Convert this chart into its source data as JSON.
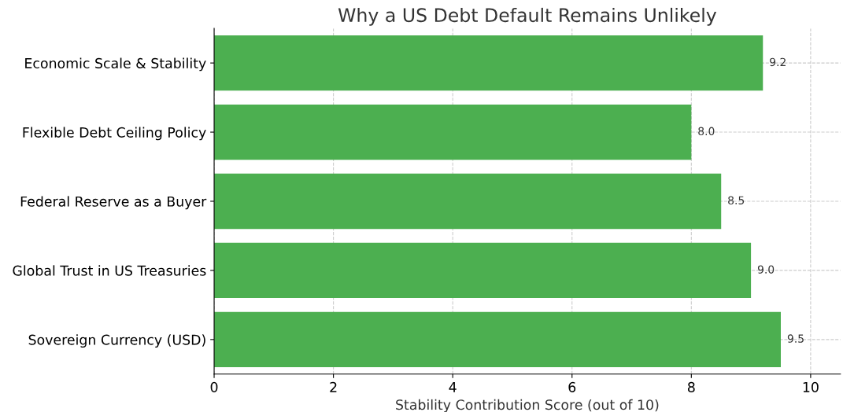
{
  "chart_data": {
    "type": "bar",
    "orientation": "horizontal",
    "title": "Why a US Debt Default Remains Unlikely",
    "xlabel": "Stability Contribution Score (out of 10)",
    "categories": [
      "Economic Scale & Stability",
      "Flexible Debt Ceiling Policy",
      "Federal Reserve as a Buyer",
      "Global Trust in US Treasuries",
      "Sovereign Currency (USD)"
    ],
    "values": [
      9.2,
      8.0,
      8.5,
      9.0,
      9.5
    ],
    "value_labels": [
      "9.2",
      "8.0",
      "8.5",
      "9.0",
      "9.5"
    ],
    "color": "#4caf50",
    "xlim": [
      0,
      10.5
    ],
    "xticks": [
      0,
      2,
      4,
      6,
      8,
      10
    ],
    "grid": true,
    "line_style": "dashed"
  }
}
